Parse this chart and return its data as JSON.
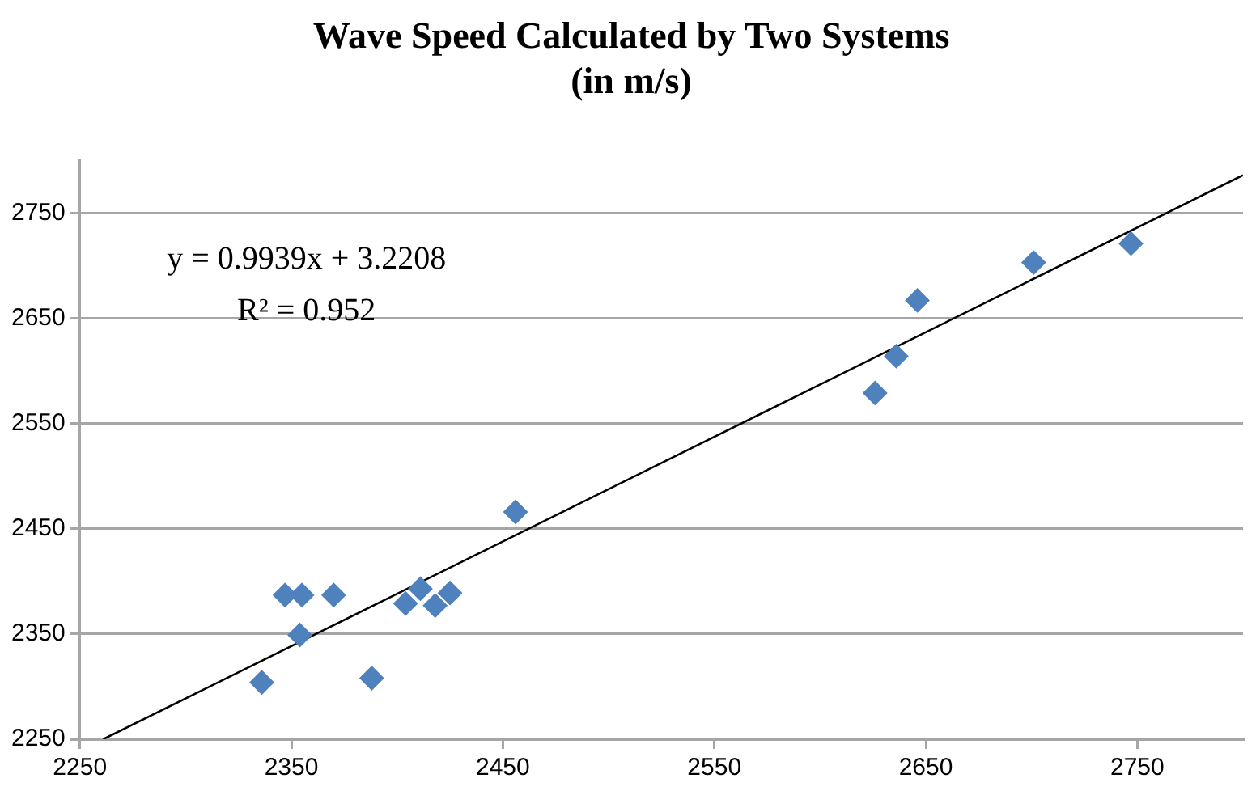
{
  "chart_data": {
    "type": "scatter",
    "title": "Wave Speed Calculated by Two Systems\n(in m/s)",
    "x": [
      2336,
      2347,
      2355,
      2370,
      2354,
      2388,
      2404,
      2411,
      2418,
      2425,
      2456,
      2626,
      2636,
      2646,
      2701,
      2747
    ],
    "series": [
      {
        "color": "#4f81bd",
        "values": [
          2304,
          2387,
          2387,
          2387,
          2349,
          2308,
          2379,
          2393,
          2377,
          2389,
          2466,
          2579,
          2614,
          2667,
          2703,
          2721
        ]
      },
      {
        "type": "line",
        "color": "#000000",
        "x": [
          2261,
          2800
        ],
        "values": [
          2250,
          2786
        ],
        "marker": "none"
      }
    ],
    "xlim": [
      2250,
      2800
    ],
    "ylim": [
      2250,
      2800
    ],
    "xticks": [
      2250,
      2350,
      2450,
      2550,
      2650,
      2750
    ],
    "yticks": [
      2250,
      2350,
      2450,
      2550,
      2650,
      2750
    ],
    "grid": "y",
    "legend": false,
    "marker": "diamond",
    "annotations": [
      "y = 0.9939x + 3.2208",
      "R² = 0.952"
    ]
  }
}
